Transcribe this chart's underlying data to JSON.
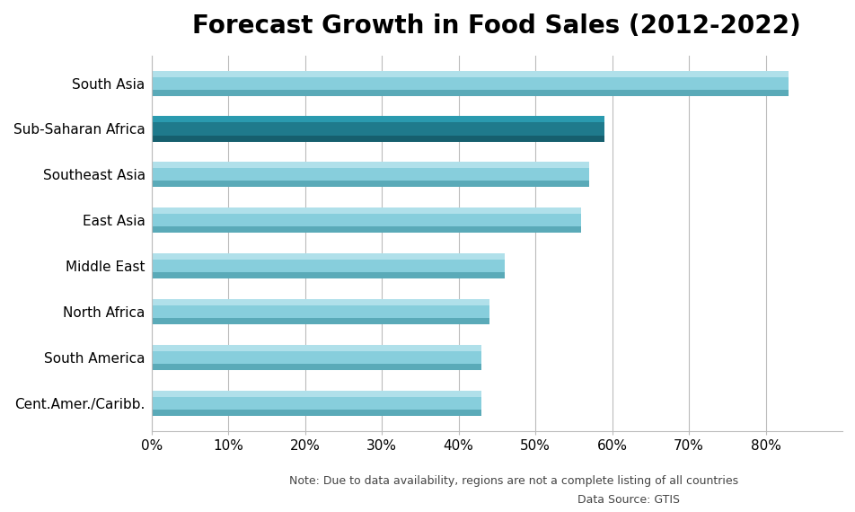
{
  "title": "Forecast Growth in Food Sales (2012-2022)",
  "categories": [
    "South Asia",
    "Sub-Saharan Africa",
    "Southeast Asia",
    "East Asia",
    "Middle East",
    "North Africa",
    "South America",
    "Cent.Amer./Caribb."
  ],
  "values": [
    83,
    59,
    57,
    56,
    46,
    44,
    43,
    43
  ],
  "bar_colors_main": [
    "#87CEDC",
    "#1F7A8C",
    "#87CEDC",
    "#87CEDC",
    "#87CEDC",
    "#87CEDC",
    "#87CEDC",
    "#87CEDC"
  ],
  "bar_colors_light": [
    "#B0E0EA",
    "#2A9AAF",
    "#B0E0EA",
    "#B0E0EA",
    "#B0E0EA",
    "#B0E0EA",
    "#B0E0EA",
    "#B0E0EA"
  ],
  "bar_colors_dark": [
    "#5AAAB8",
    "#165F6E",
    "#5AAAB8",
    "#5AAAB8",
    "#5AAAB8",
    "#5AAAB8",
    "#5AAAB8",
    "#5AAAB8"
  ],
  "xlim": [
    0,
    90
  ],
  "xticks": [
    0,
    10,
    20,
    30,
    40,
    50,
    60,
    70,
    80
  ],
  "xtick_labels": [
    "0%",
    "10%",
    "20%",
    "30%",
    "40%",
    "50%",
    "60%",
    "70%",
    "80%"
  ],
  "note_line1": "Note: Due to data availability, regions are not a complete listing of all countries",
  "note_line2": "Data Source: GTIS",
  "background_color": "#ffffff",
  "grid_color": "#bbbbbb",
  "title_fontsize": 20,
  "tick_fontsize": 11,
  "label_fontsize": 11,
  "note_fontsize": 9,
  "bar_height": 0.55
}
